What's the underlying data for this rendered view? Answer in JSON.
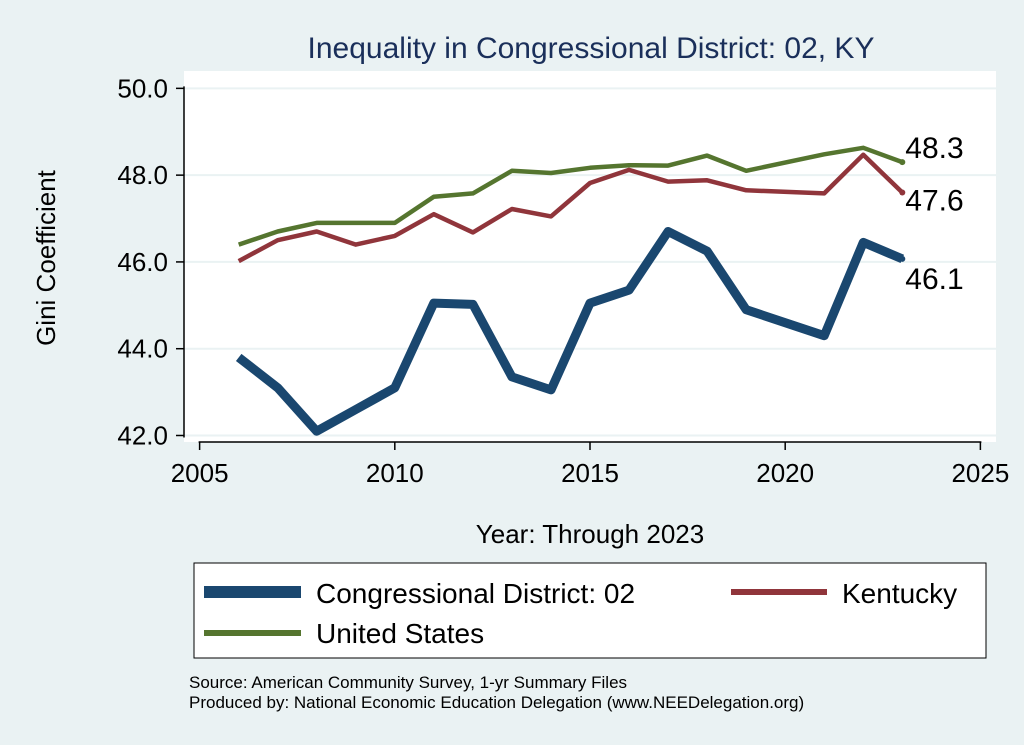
{
  "chart_data": {
    "type": "line",
    "title": "Inequality in Congressional District:  02, KY",
    "xlabel": "Year: Through 2023",
    "ylabel": "Gini Coefficient",
    "xlim": [
      2004.6,
      2025.4
    ],
    "ylim": [
      41.85,
      50.4
    ],
    "xticks": [
      2005,
      2010,
      2015,
      2020,
      2025
    ],
    "xtick_labels": [
      "2005",
      "2010",
      "2015",
      "2020",
      "2025"
    ],
    "yticks": [
      42,
      44,
      46,
      48,
      50
    ],
    "ytick_labels": [
      "42.0",
      "44.0",
      "46.0",
      "48.0",
      "50.0"
    ],
    "grid": true,
    "legend_position": "bottom",
    "series": [
      {
        "name": "Congressional District:  02",
        "color": "#1a476f",
        "x": [
          2006,
          2007,
          2008,
          2009,
          2010,
          2011,
          2012,
          2013,
          2014,
          2015,
          2016,
          2017,
          2018,
          2019,
          2021,
          2022,
          2023
        ],
        "values": [
          43.8,
          43.1,
          42.1,
          42.6,
          43.1,
          45.05,
          45.02,
          43.35,
          43.05,
          45.05,
          45.35,
          46.7,
          46.25,
          44.9,
          44.3,
          46.45,
          46.07
        ],
        "end_label": "46.1"
      },
      {
        "name": "Kentucky",
        "color": "#90353b",
        "x": [
          2006,
          2007,
          2008,
          2009,
          2010,
          2011,
          2012,
          2013,
          2014,
          2015,
          2016,
          2017,
          2018,
          2019,
          2021,
          2022,
          2023
        ],
        "values": [
          46.02,
          46.5,
          46.7,
          46.4,
          46.6,
          47.1,
          46.68,
          47.22,
          47.05,
          47.82,
          48.12,
          47.85,
          47.88,
          47.65,
          47.58,
          48.47,
          47.6
        ],
        "end_label": "47.6"
      },
      {
        "name": "United States",
        "color": "#55752f",
        "x": [
          2006,
          2007,
          2008,
          2009,
          2010,
          2011,
          2012,
          2013,
          2014,
          2015,
          2016,
          2017,
          2018,
          2019,
          2021,
          2022,
          2023
        ],
        "values": [
          46.4,
          46.7,
          46.9,
          46.9,
          46.9,
          47.5,
          47.58,
          48.1,
          48.05,
          48.17,
          48.23,
          48.22,
          48.45,
          48.1,
          48.48,
          48.63,
          48.3
        ],
        "end_label": "48.3"
      }
    ],
    "source": "Source: American Community Survey, 1-yr Summary Files",
    "producer": "Produced by: National Economic Education Delegation (www.NEEDelegation.org)"
  }
}
